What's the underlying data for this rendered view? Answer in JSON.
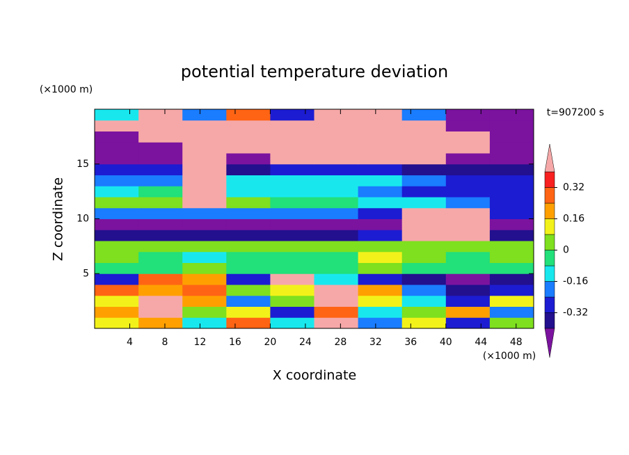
{
  "chart_data": {
    "type": "contour",
    "title": "potential temperature deviation",
    "x_label": "X coordinate",
    "y_label": "Z coordinate",
    "x_unit": "(×1000 m)",
    "y_unit": "(×1000 m)",
    "time_label": "t=907200 s",
    "xlim": [
      0,
      50
    ],
    "ylim": [
      0,
      20
    ],
    "xticks": [
      4,
      8,
      12,
      16,
      20,
      24,
      28,
      32,
      36,
      40,
      44,
      48
    ],
    "yticks": [
      5,
      10,
      15
    ],
    "z": [
      [
        0.1,
        0.2,
        -0.1,
        0.3,
        -0.1,
        0.4,
        -0.2,
        0.1,
        -0.3,
        0
      ],
      [
        0.2,
        0.5,
        0,
        0.1,
        -0.3,
        0.3,
        -0.1,
        0,
        0.2,
        -0.2
      ],
      [
        0.1,
        0.4,
        0.2,
        -0.2,
        0,
        0.5,
        0.1,
        -0.1,
        -0.3,
        0.1
      ],
      [
        0.3,
        0.2,
        0.3,
        0,
        0.1,
        0.5,
        0.2,
        -0.2,
        -0.4,
        -0.3
      ],
      [
        -0.3,
        0.3,
        0.2,
        -0.3,
        0.4,
        -0.1,
        -0.3,
        -0.4,
        -0.5,
        -0.4
      ],
      [
        -0.05,
        -0.05,
        0.02,
        -0.05,
        -0.05,
        -0.05,
        0.05,
        -0.05,
        -0.05,
        -0.05
      ],
      [
        0.02,
        -0.05,
        -0.1,
        -0.05,
        -0.05,
        -0.05,
        0.1,
        0.02,
        -0.05,
        0.02
      ],
      [
        0.03,
        0.03,
        0.03,
        0.03,
        0.03,
        0.03,
        0.05,
        0.03,
        0.03,
        0.03
      ],
      [
        -0.35,
        -0.35,
        -0.35,
        -0.35,
        -0.35,
        -0.35,
        -0.3,
        0.5,
        0.5,
        -0.35
      ],
      [
        -0.5,
        -0.45,
        -0.5,
        -0.45,
        -0.5,
        -0.5,
        -0.45,
        0.5,
        0.5,
        -0.45
      ],
      [
        -0.2,
        -0.2,
        -0.2,
        -0.2,
        -0.2,
        -0.2,
        -0.25,
        0.5,
        0.5,
        -0.3
      ],
      [
        0.03,
        0.03,
        0.5,
        0.03,
        -0.05,
        -0.05,
        -0.1,
        -0.1,
        -0.2,
        -0.25
      ],
      [
        -0.1,
        -0.05,
        0.5,
        -0.15,
        -0.15,
        -0.15,
        -0.2,
        -0.25,
        -0.3,
        -0.3
      ],
      [
        -0.2,
        -0.2,
        0.5,
        -0.15,
        -0.1,
        -0.1,
        -0.15,
        -0.2,
        -0.3,
        -0.3
      ],
      [
        -0.3,
        -0.3,
        0.5,
        -0.35,
        -0.3,
        -0.3,
        -0.3,
        -0.35,
        -0.35,
        -0.35
      ],
      [
        -0.45,
        -0.45,
        0.5,
        -0.45,
        0.5,
        0.5,
        0.5,
        0.5,
        -0.45,
        -0.45
      ],
      [
        -0.5,
        -0.5,
        0.5,
        0.5,
        0.5,
        0.5,
        0.5,
        0.5,
        0.5,
        -0.5
      ],
      [
        -0.5,
        0.5,
        0.5,
        0.5,
        0.5,
        0.5,
        0.5,
        0.5,
        0.5,
        -0.5
      ],
      [
        0.5,
        0.5,
        0.5,
        0.5,
        0.5,
        0.5,
        0.5,
        0.5,
        -0.5,
        -0.5
      ],
      [
        -0.1,
        0.5,
        -0.2,
        0.3,
        -0.3,
        0.5,
        0.5,
        -0.2,
        -0.5,
        -0.5
      ]
    ],
    "colorbar": {
      "levels": [
        -0.4,
        -0.32,
        -0.24,
        -0.16,
        -0.08,
        0,
        0.08,
        0.16,
        0.24,
        0.32,
        0.4
      ],
      "colors": [
        "#7b139f",
        "#22108e",
        "#1c1cd2",
        "#1a7cff",
        "#18e8ee",
        "#22e07a",
        "#7ee01e",
        "#f2f21a",
        "#ffa000",
        "#ff6414",
        "#f82020",
        "#f6a8a8"
      ],
      "ticks": [
        0.32,
        0.16,
        0,
        -0.16,
        -0.32
      ]
    }
  }
}
